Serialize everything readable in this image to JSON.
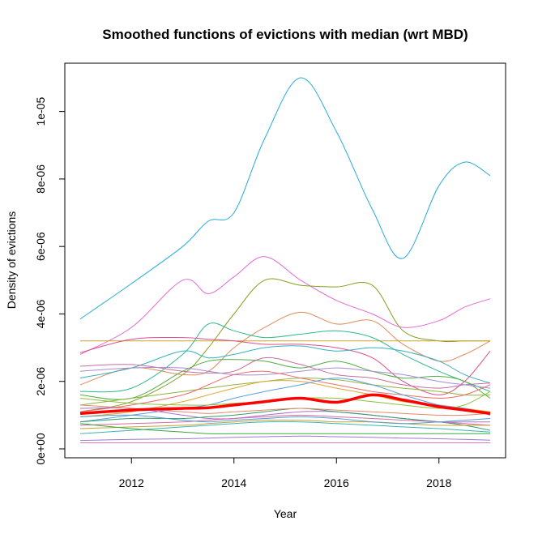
{
  "chart_data": {
    "type": "line",
    "title": "Smoothed functions of evictions with median (wrt MBD)",
    "xlabel": "Year",
    "ylabel": "Density of evictions",
    "xlim": [
      2011,
      2019
    ],
    "ylim": [
      0,
      1.1e-05
    ],
    "x_ticks": [
      2012,
      2014,
      2016,
      2018
    ],
    "x_tick_labels": [
      "2012",
      "2014",
      "2016",
      "2018"
    ],
    "y_ticks": [
      0,
      2e-06,
      4e-06,
      6e-06,
      8e-06,
      1e-05
    ],
    "y_tick_labels": [
      "0e+00",
      "2e-06",
      "4e-06",
      "6e-06",
      "8e-06",
      "1e-05"
    ],
    "grid": false,
    "legend": "none",
    "x": [
      2011,
      2012,
      2013,
      2013.5,
      2014,
      2014.6,
      2015.3,
      2016,
      2016.7,
      2017.3,
      2018,
      2018.5,
      2019
    ],
    "series": [
      {
        "color": "#26ADD5",
        "values": [
          3.85e-06,
          4.9e-06,
          6e-06,
          6.75e-06,
          7e-06,
          9.2e-06,
          1.1e-05,
          9.4e-06,
          7.1e-06,
          5.65e-06,
          7.8e-06,
          8.5e-06,
          8.1e-06
        ]
      },
      {
        "color": "#E36BD6",
        "values": [
          2.8e-06,
          3.6e-06,
          5e-06,
          4.6e-06,
          5.1e-06,
          5.7e-06,
          5e-06,
          4.4e-06,
          4e-06,
          3.6e-06,
          3.8e-06,
          4.2e-06,
          4.45e-06
        ]
      },
      {
        "color": "#82A020",
        "values": [
          1.1e-06,
          1.4e-06,
          2.2e-06,
          3e-06,
          4e-06,
          5e-06,
          4.85e-06,
          4.8e-06,
          4.85e-06,
          3.5e-06,
          3.2e-06,
          3.2e-06,
          3.2e-06
        ]
      },
      {
        "color": "#E08A5A",
        "values": [
          1.9e-06,
          2.4e-06,
          2.2e-06,
          2.3e-06,
          3e-06,
          3.6e-06,
          4.05e-06,
          3.7e-06,
          3.8e-06,
          3.1e-06,
          2.6e-06,
          2.8e-06,
          3.2e-06
        ]
      },
      {
        "color": "#C9A233",
        "values": [
          3.2e-06,
          3.2e-06,
          3.2e-06,
          3.2e-06,
          3.2e-06,
          3.2e-06,
          3.2e-06,
          3.2e-06,
          3.2e-06,
          3.2e-06,
          3.2e-06,
          3.2e-06,
          3.2e-06
        ]
      },
      {
        "color": "#2FB88C",
        "values": [
          1.7e-06,
          1.8e-06,
          2.8e-06,
          3.7e-06,
          3.5e-06,
          3.3e-06,
          3.4e-06,
          3.5e-06,
          3.3e-06,
          2.8e-06,
          2.3e-06,
          2e-06,
          1.7e-06
        ]
      },
      {
        "color": "#D94F8A",
        "values": [
          2.85e-06,
          3.25e-06,
          3.3e-06,
          3.25e-06,
          3.2e-06,
          3.1e-06,
          3.1e-06,
          3e-06,
          2.7e-06,
          2e-06,
          1.6e-06,
          2e-06,
          2.9e-06
        ]
      },
      {
        "color": "#35B0C0",
        "values": [
          2.1e-06,
          2.4e-06,
          2.9e-06,
          2.7e-06,
          2.8e-06,
          3e-06,
          3.05e-06,
          2.9e-06,
          3e-06,
          2.9e-06,
          2.6e-06,
          2.2e-06,
          1.95e-06
        ]
      },
      {
        "color": "#4FAE45",
        "values": [
          1.6e-06,
          1.5e-06,
          2.3e-06,
          2.6e-06,
          2.65e-06,
          2.6e-06,
          2.4e-06,
          2.6e-06,
          2.3e-06,
          2.1e-06,
          2.15e-06,
          2e-06,
          1.5e-06
        ]
      },
      {
        "color": "#C86E9E",
        "values": [
          2.45e-06,
          2.5e-06,
          2.3e-06,
          2.25e-06,
          2.3e-06,
          2.7e-06,
          2.5e-06,
          2.2e-06,
          2.1e-06,
          1.9e-06,
          1.8e-06,
          1.9e-06,
          1.95e-06
        ]
      },
      {
        "color": "#A78BD6",
        "values": [
          2.3e-06,
          2.4e-06,
          2.4e-06,
          2.3e-06,
          2.2e-06,
          2.2e-06,
          2.3e-06,
          2.4e-06,
          2.3e-06,
          2.2e-06,
          2e-06,
          1.9e-06,
          1.8e-06
        ]
      },
      {
        "color": "#8FB33C",
        "values": [
          1.3e-06,
          1.5e-06,
          1.7e-06,
          1.8e-06,
          1.9e-06,
          2e-06,
          2.1e-06,
          2.05e-06,
          1.9e-06,
          1.8e-06,
          1.7e-06,
          1.6e-06,
          1.6e-06
        ]
      },
      {
        "color": "#F06C6C",
        "values": [
          1.1e-06,
          1.3e-06,
          1.6e-06,
          1.9e-06,
          2.2e-06,
          2.3e-06,
          2.1e-06,
          1.9e-06,
          1.7e-06,
          1.6e-06,
          1.5e-06,
          1.6e-06,
          1.9e-06
        ]
      },
      {
        "color": "#E0A530",
        "values": [
          9.5e-07,
          1.1e-06,
          1.4e-06,
          1.6e-06,
          1.8e-06,
          2e-06,
          2e-06,
          1.8e-06,
          1.6e-06,
          1.4e-06,
          1.3e-06,
          1.2e-06,
          1.1e-06
        ]
      },
      {
        "color": "#5AA0E0",
        "values": [
          8e-07,
          1e-06,
          1.2e-06,
          1.3e-06,
          1.5e-06,
          1.7e-06,
          1.9e-06,
          2.1e-06,
          1.9e-06,
          1.6e-06,
          1.3e-06,
          1.2e-06,
          1e-06
        ]
      },
      {
        "color": "#B06EC8",
        "values": [
          1.2e-06,
          1.2e-06,
          1e-06,
          9e-07,
          9e-07,
          1e-06,
          1.1e-06,
          1.1e-06,
          1e-06,
          9e-07,
          8e-07,
          8e-07,
          8e-07
        ]
      },
      {
        "color": "#2E9E6A",
        "values": [
          8e-07,
          9e-07,
          9e-07,
          9.5e-07,
          1e-06,
          1.1e-06,
          1.2e-06,
          1.1e-06,
          1e-06,
          9e-07,
          8e-07,
          7e-07,
          5.5e-07
        ]
      },
      {
        "color": "#D86AA8",
        "values": [
          7e-07,
          7.5e-07,
          8e-07,
          8.5e-07,
          9e-07,
          9.5e-07,
          1e-06,
          9.5e-07,
          9e-07,
          8.5e-07,
          8e-07,
          7.5e-07,
          7e-07
        ]
      },
      {
        "color": "#C6A233",
        "values": [
          6e-07,
          6.5e-07,
          7e-07,
          7.5e-07,
          8e-07,
          8.5e-07,
          8.5e-07,
          8e-07,
          8e-07,
          7.5e-07,
          7e-07,
          7e-07,
          7e-07
        ]
      },
      {
        "color": "#38B5B5",
        "values": [
          4.5e-07,
          5.5e-07,
          6.5e-07,
          7e-07,
          7.5e-07,
          8e-07,
          8e-07,
          7.5e-07,
          7e-07,
          6.5e-07,
          6e-07,
          5.5e-07,
          5e-07
        ]
      },
      {
        "color": "#3CAA3C",
        "values": [
          7.5e-07,
          6e-07,
          5e-07,
          4.5e-07,
          4.5e-07,
          4.5e-07,
          4.5e-07,
          4.5e-07,
          4.5e-07,
          4.5e-07,
          4.5e-07,
          4.5e-07,
          4.5e-07
        ]
      },
      {
        "color": "#9A7BD0",
        "values": [
          2.5e-07,
          2.8e-07,
          3e-07,
          3.2e-07,
          3.4e-07,
          3.6e-07,
          3.8e-07,
          3.6e-07,
          3.4e-07,
          3.2e-07,
          3e-07,
          2.8e-07,
          2.6e-07
        ]
      },
      {
        "color": "#E377C2",
        "values": [
          1.8e-07,
          1.8e-07,
          1.8e-07,
          1.8e-07,
          1.8e-07,
          1.8e-07,
          1.8e-07,
          1.8e-07,
          1.8e-07,
          1.8e-07,
          1.8e-07,
          1.8e-07,
          1.8e-07
        ]
      },
      {
        "color": "#4E9FD0",
        "values": [
          9.5e-07,
          1e-06,
          8.5e-07,
          8e-07,
          8.5e-07,
          9e-07,
          9.5e-07,
          9e-07,
          8e-07,
          7.5e-07,
          8e-07,
          8.5e-07,
          9e-07
        ]
      },
      {
        "color": "#8DBF3A",
        "values": [
          1.5e-06,
          1.35e-06,
          1.3e-06,
          1.3e-06,
          1.35e-06,
          1.4e-06,
          1.5e-06,
          1.5e-06,
          1.4e-06,
          1.3e-06,
          1.2e-06,
          1.3e-06,
          1.7e-06
        ]
      },
      {
        "color": "#E8876A",
        "values": [
          1.3e-06,
          1.2e-06,
          1.1e-06,
          1.05e-06,
          1.1e-06,
          1.15e-06,
          1.2e-06,
          1.15e-06,
          1.1e-06,
          1.05e-06,
          1e-06,
          1e-06,
          1.05e-06
        ]
      },
      {
        "color": "#FF0000",
        "values": [
          1.05e-06,
          1.15e-06,
          1.2e-06,
          1.22e-06,
          1.3e-06,
          1.4e-06,
          1.5e-06,
          1.38e-06,
          1.6e-06,
          1.45e-06,
          1.25e-06,
          1.15e-06,
          1.05e-06
        ]
      }
    ]
  }
}
